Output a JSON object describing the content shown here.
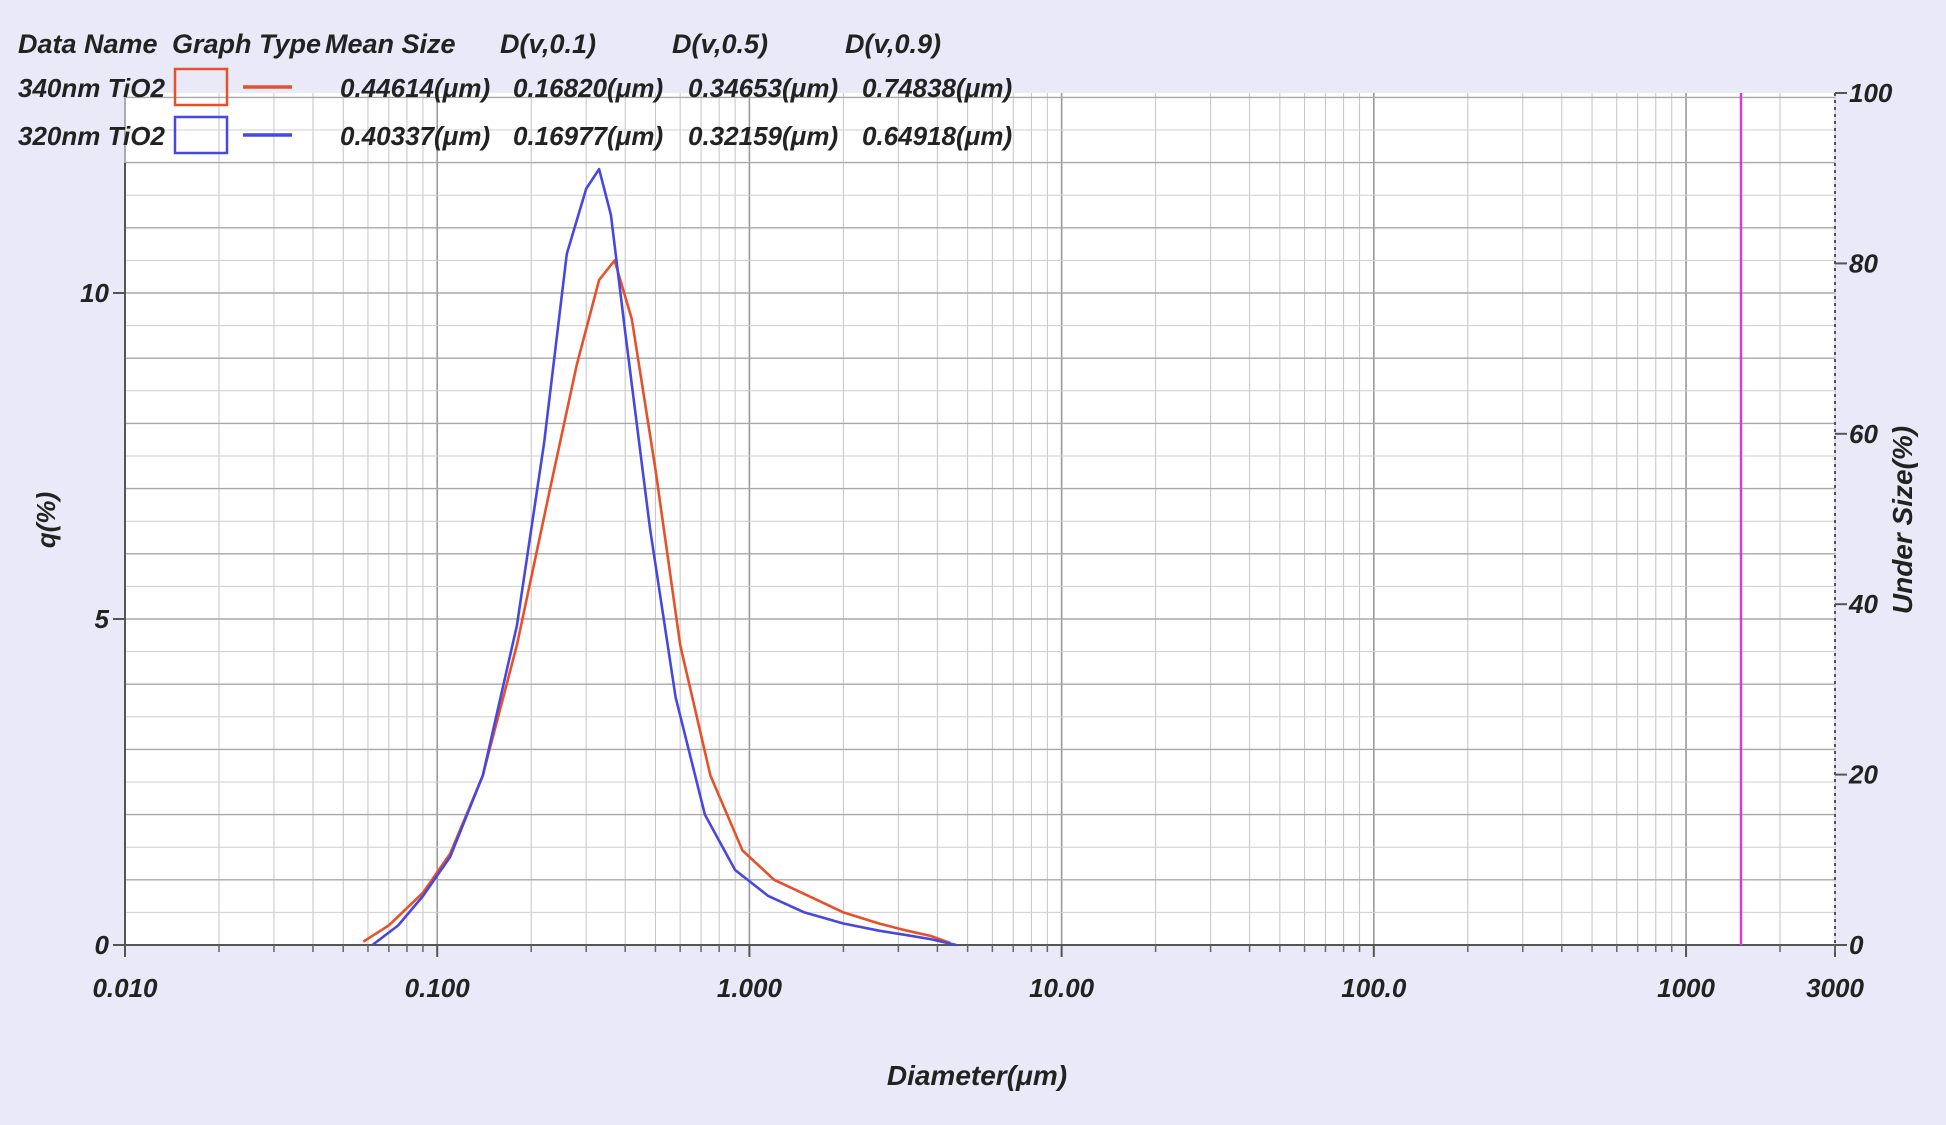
{
  "chart_data": {
    "type": "line",
    "xlabel": "Diameter(μm)",
    "ylabel_left": "q(%)",
    "ylabel_right": "Under Size(%)",
    "x_scale": "log",
    "xlim": [
      0.01,
      3000
    ],
    "ylim_left": [
      0,
      13
    ],
    "ylim_right": [
      0,
      100
    ],
    "x_ticks": [
      {
        "value": 0.01,
        "label": "0.010"
      },
      {
        "value": 0.1,
        "label": "0.100"
      },
      {
        "value": 1,
        "label": "1.000"
      },
      {
        "value": 10,
        "label": "10.00"
      },
      {
        "value": 100,
        "label": "100.0"
      },
      {
        "value": 1000,
        "label": "1000"
      },
      {
        "value": 3000,
        "label": "3000"
      }
    ],
    "y_left_ticks": [
      {
        "value": 0,
        "label": "0"
      },
      {
        "value": 5,
        "label": "5"
      },
      {
        "value": 10,
        "label": "10"
      }
    ],
    "y_right_ticks": [
      {
        "value": 0,
        "label": "0"
      },
      {
        "value": 20,
        "label": "20"
      },
      {
        "value": 40,
        "label": "40"
      },
      {
        "value": 60,
        "label": "60"
      },
      {
        "value": 80,
        "label": "80"
      },
      {
        "value": 100,
        "label": "100"
      }
    ],
    "grid": true,
    "legend_table": {
      "headers": [
        "Data Name",
        "Graph Type",
        "Mean Size",
        "D(v,0.1)",
        "D(v,0.5)",
        "D(v,0.9)"
      ],
      "rows": [
        {
          "name": "340nm TiO2",
          "color": "#e8502a",
          "mean": "0.44614(μm)",
          "d10": "0.16820(μm)",
          "d50": "0.34653(μm)",
          "d90": "0.74838(μm)"
        },
        {
          "name": "320nm TiO2",
          "color": "#4848e0",
          "mean": "0.40337(μm)",
          "d10": "0.16977(μm)",
          "d50": "0.32159(μm)",
          "d90": "0.64918(μm)"
        }
      ]
    },
    "marker_line": {
      "x": 1500,
      "color": "#d040d0"
    },
    "series": [
      {
        "name": "340nm TiO2",
        "color": "#e8502a",
        "x": [
          0.058,
          0.07,
          0.09,
          0.11,
          0.14,
          0.18,
          0.23,
          0.28,
          0.33,
          0.37,
          0.42,
          0.5,
          0.6,
          0.75,
          0.95,
          1.2,
          1.6,
          2.0,
          2.6,
          3.2,
          3.8,
          4.4
        ],
        "y": [
          0.05,
          0.3,
          0.8,
          1.4,
          2.6,
          4.6,
          7.0,
          8.9,
          10.2,
          10.5,
          9.6,
          7.3,
          4.6,
          2.6,
          1.45,
          1.0,
          0.72,
          0.5,
          0.33,
          0.22,
          0.14,
          0.03
        ]
      },
      {
        "name": "320nm TiO2",
        "color": "#4848e0",
        "x": [
          0.062,
          0.075,
          0.09,
          0.11,
          0.14,
          0.18,
          0.22,
          0.26,
          0.3,
          0.33,
          0.36,
          0.4,
          0.48,
          0.58,
          0.72,
          0.9,
          1.15,
          1.5,
          2.0,
          2.6,
          3.2,
          3.8,
          4.6
        ],
        "y": [
          0.0,
          0.3,
          0.75,
          1.35,
          2.6,
          4.9,
          7.7,
          10.6,
          11.6,
          11.9,
          11.2,
          9.4,
          6.4,
          3.8,
          2.0,
          1.15,
          0.75,
          0.5,
          0.33,
          0.22,
          0.15,
          0.09,
          0.0
        ]
      }
    ]
  }
}
